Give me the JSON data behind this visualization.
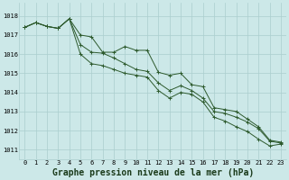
{
  "background_color": "#cce8e8",
  "grid_color": "#aacece",
  "line_color": "#2d5a2d",
  "xlabel": "Graphe pression niveau de la mer (hPa)",
  "xlabel_fontsize": 7,
  "ylabel_values": [
    1011,
    1012,
    1013,
    1014,
    1015,
    1016,
    1017,
    1018
  ],
  "xlim": [
    -0.5,
    23.5
  ],
  "ylim": [
    1010.5,
    1018.7
  ],
  "series1": [
    1017.4,
    1017.65,
    1017.45,
    1017.35,
    1017.85,
    1017.0,
    1016.9,
    1016.1,
    1016.1,
    1016.4,
    1016.2,
    1016.2,
    1015.05,
    1014.9,
    1015.0,
    1014.4,
    1014.3,
    1013.2,
    1013.1,
    1013.0,
    1012.6,
    1012.2,
    1011.5,
    1011.4
  ],
  "series2": [
    1017.4,
    1017.65,
    1017.45,
    1017.35,
    1017.85,
    1016.5,
    1016.1,
    1016.05,
    1015.8,
    1015.5,
    1015.2,
    1015.1,
    1014.5,
    1014.1,
    1014.35,
    1014.1,
    1013.7,
    1013.0,
    1012.9,
    1012.7,
    1012.45,
    1012.1,
    1011.45,
    1011.35
  ],
  "series3": [
    1017.4,
    1017.65,
    1017.45,
    1017.35,
    1017.85,
    1016.0,
    1015.5,
    1015.4,
    1015.2,
    1015.0,
    1014.9,
    1014.8,
    1014.1,
    1013.7,
    1014.0,
    1013.9,
    1013.5,
    1012.7,
    1012.5,
    1012.2,
    1011.95,
    1011.55,
    1011.2,
    1011.3
  ],
  "x_tick_labels": [
    "0",
    "1",
    "2",
    "3",
    "4",
    "5",
    "6",
    "7",
    "8",
    "9",
    "10",
    "11",
    "12",
    "13",
    "14",
    "15",
    "16",
    "17",
    "18",
    "19",
    "20",
    "21",
    "22",
    "23"
  ],
  "tick_fontsize": 5,
  "marker_size": 2.5,
  "line_width": 0.7
}
